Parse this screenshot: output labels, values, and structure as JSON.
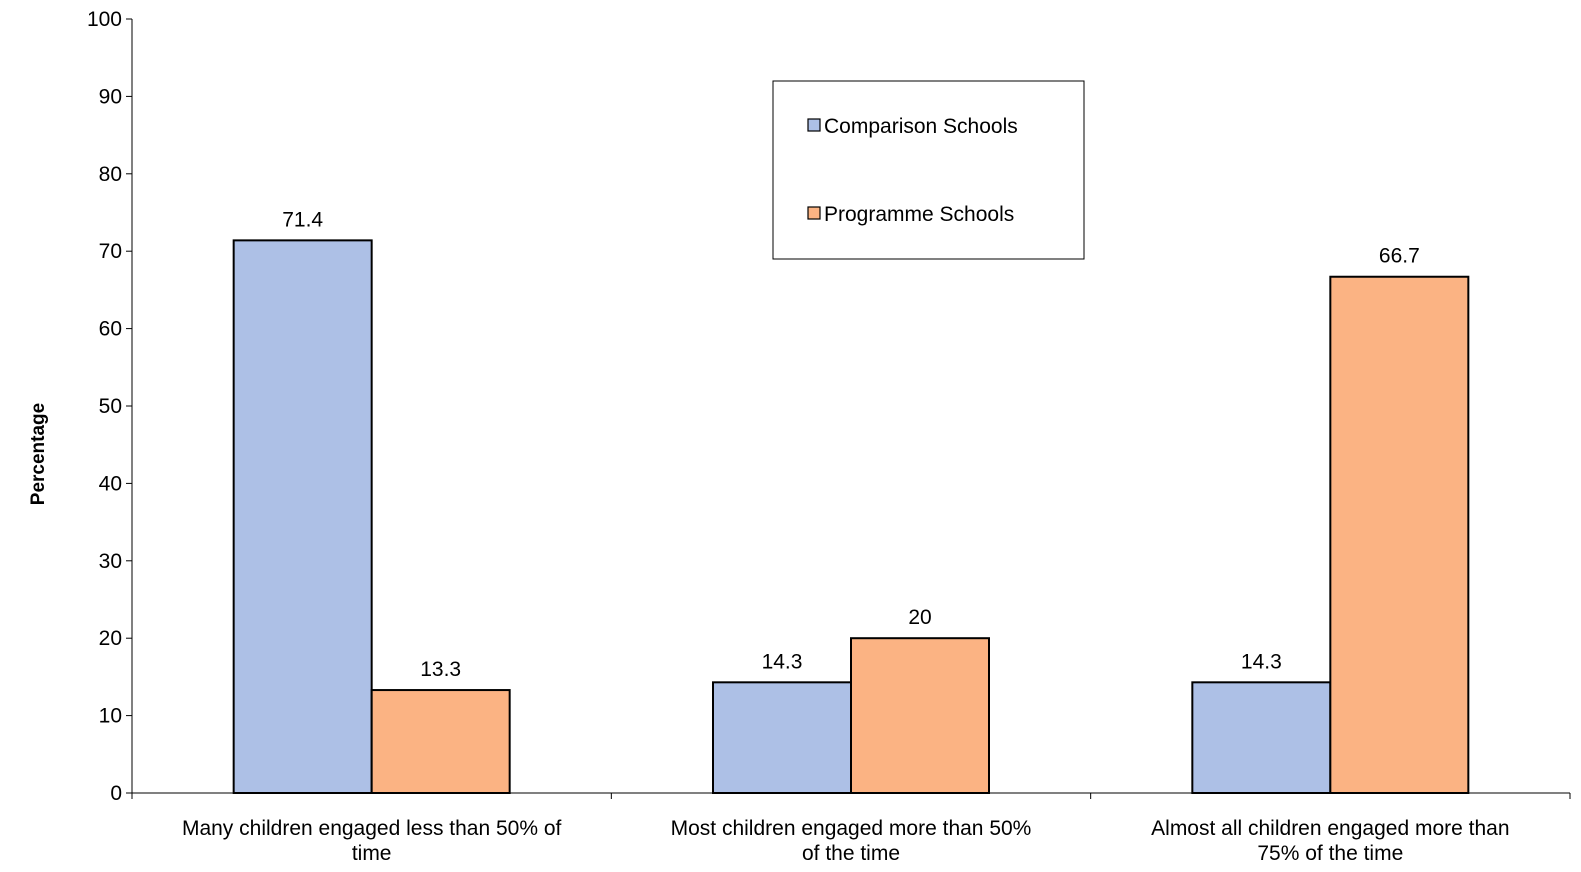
{
  "chart_data": {
    "type": "bar",
    "title": "",
    "xlabel": "",
    "ylabel": "Percentage",
    "ylim": [
      0,
      100
    ],
    "yticks": [
      0,
      10,
      20,
      30,
      40,
      50,
      60,
      70,
      80,
      90,
      100
    ],
    "grid": false,
    "legend_position": "top-center",
    "categories": [
      [
        "Many children engaged less than 50% of",
        "time"
      ],
      [
        "Most children engaged more than 50%",
        "of the time"
      ],
      [
        "Almost all children engaged more than",
        "75% of the time"
      ]
    ],
    "series": [
      {
        "name": "Comparison Schools",
        "color": "#adc0e6",
        "values": [
          71.4,
          14.3,
          14.3
        ],
        "labels": [
          "71.4",
          "14.3",
          "14.3"
        ]
      },
      {
        "name": "Programme Schools",
        "color": "#fbb383",
        "values": [
          13.3,
          20,
          66.7
        ],
        "labels": [
          "13.3",
          "20",
          "66.7"
        ]
      }
    ]
  }
}
